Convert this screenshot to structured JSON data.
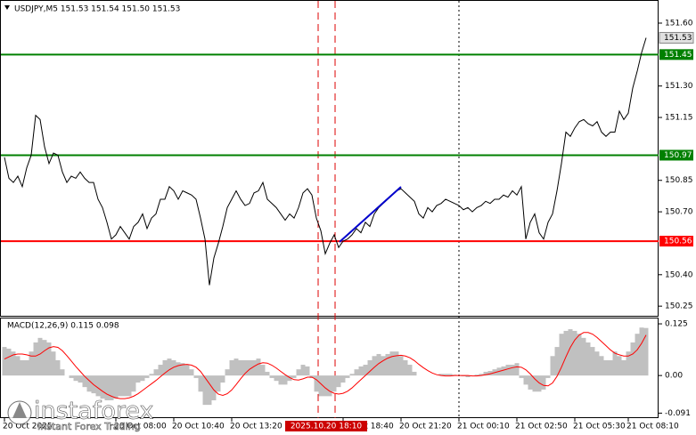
{
  "chart_data": [
    {
      "type": "line",
      "title": "USDJPY,M5  151.53 151.54 151.50 151.53",
      "color": "#000000",
      "values": [
        150.96,
        150.86,
        150.84,
        150.87,
        150.82,
        150.91,
        150.97,
        151.16,
        151.14,
        151.01,
        150.93,
        150.98,
        150.97,
        150.89,
        150.84,
        150.87,
        150.86,
        150.89,
        150.86,
        150.84,
        150.84,
        150.76,
        150.72,
        150.65,
        150.57,
        150.59,
        150.63,
        150.6,
        150.57,
        150.63,
        150.65,
        150.69,
        150.62,
        150.67,
        150.69,
        150.76,
        150.76,
        150.82,
        150.8,
        150.76,
        150.8,
        150.79,
        150.78,
        150.76,
        150.67,
        150.57,
        150.35,
        150.48,
        150.55,
        150.63,
        150.72,
        150.76,
        150.8,
        150.76,
        150.73,
        150.74,
        150.79,
        150.8,
        150.84,
        150.76,
        150.74,
        150.72,
        150.69,
        150.66,
        150.69,
        150.67,
        150.72,
        150.79,
        150.81,
        150.78,
        150.67,
        150.61,
        150.5,
        150.55,
        150.59,
        150.53,
        150.56,
        150.57,
        150.59,
        150.62,
        150.6,
        150.65,
        150.63,
        150.69,
        150.72,
        150.74,
        150.76,
        150.78,
        150.8,
        150.81,
        150.79,
        150.77,
        150.75,
        150.69,
        150.67,
        150.72,
        150.7,
        150.73,
        150.74,
        150.76,
        150.75,
        150.74,
        150.73,
        150.71,
        150.72,
        150.7,
        150.72,
        150.73,
        150.75,
        150.74,
        150.76,
        150.76,
        150.78,
        150.77,
        150.8,
        150.78,
        150.82,
        150.57,
        150.65,
        150.69,
        150.6,
        150.57,
        150.65,
        150.69,
        150.8,
        150.93,
        151.08,
        151.06,
        151.1,
        151.13,
        151.14,
        151.12,
        151.11,
        151.13,
        151.08,
        151.06,
        151.08,
        151.08,
        151.18,
        151.14,
        151.17,
        151.29,
        151.37,
        151.46,
        151.53
      ],
      "ylim": [
        150.204,
        151.706
      ],
      "yticks": [
        {
          "value": 151.6,
          "label": "151.60"
        },
        {
          "value": 151.3,
          "label": "151.30"
        },
        {
          "value": 151.15,
          "label": "151.15"
        },
        {
          "value": 150.85,
          "label": "150.85"
        },
        {
          "value": 150.7,
          "label": "150.70"
        },
        {
          "value": 150.4,
          "label": "150.40"
        },
        {
          "value": 150.25,
          "label": "150.25"
        }
      ],
      "levels": [
        {
          "value": 151.45,
          "color": "#008000"
        },
        {
          "value": 150.97,
          "color": "#008000"
        },
        {
          "value": 150.56,
          "color": "#ff0000"
        }
      ],
      "last": 151.53,
      "xticks": [
        {
          "value": 0,
          "label": "20 Oct 2025"
        },
        {
          "value": 25,
          "label": "20 Oct 08:00"
        },
        {
          "value": 38,
          "label": "20 Oct 10:40"
        },
        {
          "value": 51,
          "label": "20 Oct 13:20"
        },
        {
          "value": 76,
          "label": "20 Oct 18:40"
        },
        {
          "value": 89,
          "label": "20 Oct 21:20"
        },
        {
          "value": 102,
          "label": "21 Oct 00:10"
        },
        {
          "value": 115,
          "label": "21 Oct 02:50"
        },
        {
          "value": 128,
          "label": "21 Oct 05:30"
        },
        {
          "value": 140,
          "label": "21 Oct 08:10"
        }
      ],
      "crosshair_label": "2025.10.20 18:10",
      "watermark": "instaforex",
      "watermark_subtitle": "Instant Forex Trading"
    },
    {
      "type": "macd",
      "title": "MACD(12,26,9) 0.115 0.098",
      "ylim": [
        -0.103,
        0.138
      ],
      "yticks": [
        0.125,
        {
          "value": 0,
          "label": "0.00"
        },
        -0.091
      ],
      "series": [
        {
          "type": "bar",
          "color": "#c0c0c0",
          "values": [
            0.069,
            0.065,
            0.058,
            0.047,
            0.037,
            0.037,
            0.058,
            0.08,
            0.091,
            0.086,
            0.08,
            0.058,
            0.037,
            0.015,
            0,
            -0.006,
            -0.013,
            -0.017,
            -0.028,
            -0.039,
            -0.043,
            -0.05,
            -0.056,
            -0.06,
            -0.06,
            -0.056,
            -0.05,
            -0.05,
            -0.05,
            -0.039,
            -0.017,
            -0.013,
            -0.006,
            0.004,
            0.015,
            0.026,
            0.037,
            0.041,
            0.037,
            0.032,
            0.03,
            0.026,
            0.015,
            -0.006,
            -0.039,
            -0.071,
            -0.071,
            -0.06,
            -0.039,
            -0.017,
            0.015,
            0.037,
            0.041,
            0.037,
            0.037,
            0.037,
            0.037,
            0.041,
            0.026,
            0.009,
            -0.006,
            -0.013,
            -0.022,
            -0.022,
            -0.013,
            -0.006,
            0.015,
            0.026,
            0.022,
            -0.006,
            -0.039,
            -0.05,
            -0.05,
            -0.05,
            -0.039,
            -0.028,
            -0.017,
            -0.006,
            0.004,
            0.015,
            0.022,
            0.026,
            0.037,
            0.047,
            0.052,
            0.047,
            0.052,
            0.058,
            0.058,
            0.047,
            0.037,
            0.026,
            0.009,
            0,
            0,
            0,
            0,
            0,
            0.004,
            0.004,
            0.004,
            0.002,
            0,
            -0.002,
            -0.004,
            0,
            0.002,
            0.004,
            0.009,
            0.011,
            0.015,
            0.019,
            0.022,
            0.026,
            0.026,
            0.03,
            -0.006,
            -0.022,
            -0.034,
            -0.039,
            -0.039,
            -0.034,
            -0.006,
            0.047,
            0.069,
            0.101,
            0.108,
            0.112,
            0.108,
            0.101,
            0.091,
            0.08,
            0.069,
            0.058,
            0.047,
            0.037,
            0.037,
            0.058,
            0.047,
            0.037,
            0.058,
            0.08,
            0.101,
            0.116,
            0.115
          ]
        },
        {
          "type": "line",
          "color": "#ff0000",
          "values": [
            0.04,
            0.045,
            0.05,
            0.052,
            0.052,
            0.05,
            0.047,
            0.047,
            0.052,
            0.06,
            0.067,
            0.07,
            0.068,
            0.06,
            0.048,
            0.035,
            0.022,
            0.01,
            -0.002,
            -0.012,
            -0.022,
            -0.03,
            -0.038,
            -0.045,
            -0.05,
            -0.054,
            -0.056,
            -0.056,
            -0.054,
            -0.05,
            -0.044,
            -0.036,
            -0.028,
            -0.02,
            -0.012,
            -0.003,
            0.006,
            0.014,
            0.02,
            0.024,
            0.026,
            0.027,
            0.025,
            0.02,
            0.01,
            -0.005,
            -0.02,
            -0.035,
            -0.045,
            -0.048,
            -0.044,
            -0.035,
            -0.022,
            -0.008,
            0.005,
            0.015,
            0.022,
            0.028,
            0.031,
            0.03,
            0.025,
            0.018,
            0.01,
            0.002,
            -0.005,
            -0.01,
            -0.011,
            -0.008,
            -0.004,
            -0.004,
            -0.01,
            -0.02,
            -0.03,
            -0.038,
            -0.043,
            -0.045,
            -0.043,
            -0.038,
            -0.03,
            -0.02,
            -0.01,
            0,
            0.01,
            0.02,
            0.029,
            0.036,
            0.042,
            0.046,
            0.048,
            0.049,
            0.047,
            0.043,
            0.036,
            0.027,
            0.019,
            0.012,
            0.006,
            0.002,
            0,
            -0.001,
            -0.001,
            0,
            0,
            0,
            0,
            -0.001,
            -0.001,
            0,
            0.002,
            0.004,
            0.007,
            0.01,
            0.013,
            0.016,
            0.019,
            0.021,
            0.02,
            0.014,
            0.004,
            -0.008,
            -0.018,
            -0.024,
            -0.025,
            -0.018,
            -0.002,
            0.02,
            0.045,
            0.068,
            0.086,
            0.098,
            0.104,
            0.104,
            0.1,
            0.092,
            0.082,
            0.072,
            0.062,
            0.054,
            0.05,
            0.047,
            0.047,
            0.052,
            0.062,
            0.078,
            0.098
          ]
        }
      ]
    }
  ]
}
